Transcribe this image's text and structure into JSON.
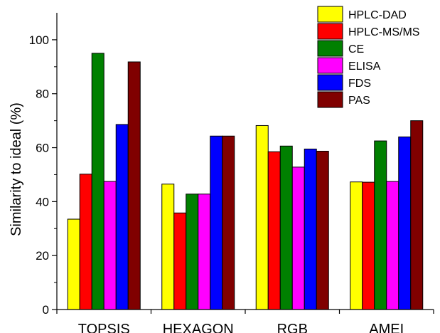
{
  "chart_data": {
    "type": "bar",
    "title": "",
    "xlabel": "",
    "ylabel": "Similarity to ideal (%)",
    "ylim": [
      0,
      110
    ],
    "yticks": [
      0,
      20,
      40,
      60,
      80,
      100
    ],
    "grid": false,
    "legend_position": "top-right",
    "categories": [
      "TOPSIS",
      "HEXAGON",
      "RGB",
      "AMEI"
    ],
    "series": [
      {
        "name": "HPLC-DAD",
        "color": "#ffff00",
        "values": [
          33.5,
          46.5,
          68.2,
          47.3
        ]
      },
      {
        "name": "HPLC-MS/MS",
        "color": "#ff0000",
        "values": [
          50.2,
          35.8,
          58.5,
          47.2
        ]
      },
      {
        "name": "CE",
        "color": "#008000",
        "values": [
          95.0,
          42.8,
          60.6,
          62.5
        ]
      },
      {
        "name": "ELISA",
        "color": "#ff00ff",
        "values": [
          47.5,
          42.8,
          52.8,
          47.5
        ]
      },
      {
        "name": "FDS",
        "color": "#0000ff",
        "values": [
          68.6,
          64.3,
          59.5,
          64.0
        ]
      },
      {
        "name": "PAS",
        "color": "#800000",
        "values": [
          91.8,
          64.3,
          58.7,
          70.0
        ]
      }
    ]
  }
}
